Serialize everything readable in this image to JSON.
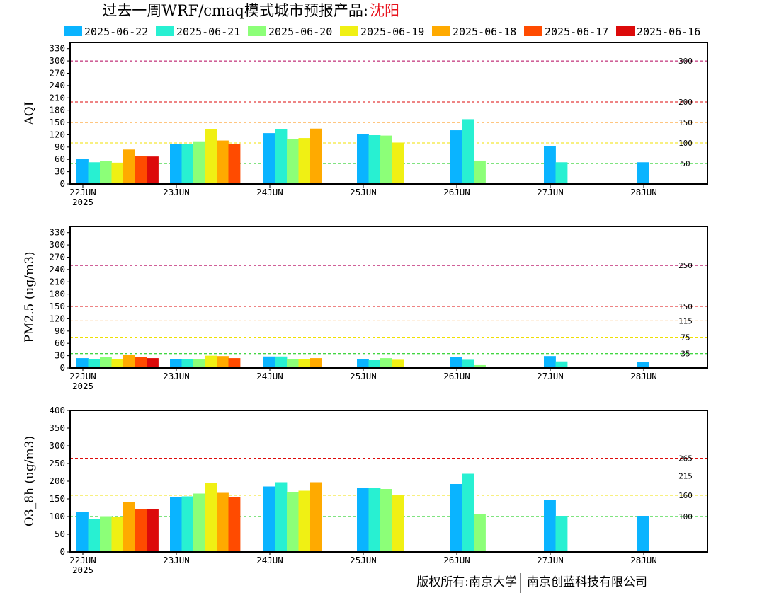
{
  "title": {
    "main": "过去一周WRF/cmaq模式城市预报产品:",
    "city": "沈阳",
    "city_color": "#e8141e"
  },
  "legend": [
    {
      "label": "2025-06-22",
      "color": "#0ab4ff"
    },
    {
      "label": "2025-06-21",
      "color": "#28f0d2"
    },
    {
      "label": "2025-06-20",
      "color": "#8cff78"
    },
    {
      "label": "2025-06-19",
      "color": "#f0f014"
    },
    {
      "label": "2025-06-18",
      "color": "#ffaa00"
    },
    {
      "label": "2025-06-17",
      "color": "#ff4b00"
    },
    {
      "label": "2025-06-16",
      "color": "#dc0a0a"
    }
  ],
  "x_ticks": [
    "22JUN",
    "23JUN",
    "24JUN",
    "25JUN",
    "26JUN",
    "27JUN",
    "28JUN"
  ],
  "x_year": "2025",
  "copyright": {
    "left": "版权所有:南京大学",
    "right": "南京创蓝科技有限公司"
  },
  "chart_data": [
    {
      "type": "bar",
      "ylabel": "AQI",
      "ylim": [
        0,
        345
      ],
      "yticks": [
        0,
        30,
        60,
        90,
        120,
        150,
        180,
        210,
        240,
        270,
        300,
        330
      ],
      "reference_lines": [
        {
          "value": 300,
          "label": "300",
          "color": "#b4005a"
        },
        {
          "value": 200,
          "label": "200",
          "color": "#dc0a0a"
        },
        {
          "value": 150,
          "label": "150",
          "color": "#ff8c00"
        },
        {
          "value": 100,
          "label": "100",
          "color": "#f0e000"
        },
        {
          "value": 50,
          "label": "50",
          "color": "#00c800"
        }
      ],
      "categories": [
        "22JUN",
        "23JUN",
        "24JUN",
        "25JUN",
        "26JUN",
        "27JUN",
        "28JUN"
      ],
      "series": [
        {
          "name": "2025-06-22",
          "values": [
            62,
            97,
            124,
            122,
            131,
            92,
            53
          ]
        },
        {
          "name": "2025-06-21",
          "values": [
            53,
            97,
            134,
            119,
            158,
            53,
            null
          ]
        },
        {
          "name": "2025-06-20",
          "values": [
            56,
            104,
            109,
            118,
            57,
            null,
            null
          ]
        },
        {
          "name": "2025-06-19",
          "values": [
            52,
            133,
            112,
            101,
            null,
            null,
            null
          ]
        },
        {
          "name": "2025-06-18",
          "values": [
            84,
            106,
            135,
            null,
            null,
            null,
            null
          ]
        },
        {
          "name": "2025-06-17",
          "values": [
            69,
            97,
            null,
            null,
            null,
            null,
            null
          ]
        },
        {
          "name": "2025-06-16",
          "values": [
            67,
            null,
            null,
            null,
            null,
            null,
            null
          ]
        }
      ]
    },
    {
      "type": "bar",
      "ylabel": "PM2.5 (ug/m3)",
      "ylim": [
        0,
        345
      ],
      "yticks": [
        0,
        30,
        60,
        90,
        120,
        150,
        180,
        210,
        240,
        270,
        300,
        330
      ],
      "reference_lines": [
        {
          "value": 250,
          "label": "250",
          "color": "#b4005a"
        },
        {
          "value": 150,
          "label": "150",
          "color": "#dc0a0a"
        },
        {
          "value": 115,
          "label": "115",
          "color": "#ff8c00"
        },
        {
          "value": 75,
          "label": "75",
          "color": "#f0e000"
        },
        {
          "value": 35,
          "label": "35",
          "color": "#00c800"
        }
      ],
      "categories": [
        "22JUN",
        "23JUN",
        "24JUN",
        "25JUN",
        "26JUN",
        "27JUN",
        "28JUN"
      ],
      "series": [
        {
          "name": "2025-06-22",
          "values": [
            24,
            22,
            28,
            22,
            26,
            29,
            14
          ]
        },
        {
          "name": "2025-06-21",
          "values": [
            22,
            21,
            28,
            19,
            20,
            16,
            null
          ]
        },
        {
          "name": "2025-06-20",
          "values": [
            27,
            21,
            22,
            24,
            7,
            null,
            null
          ]
        },
        {
          "name": "2025-06-19",
          "values": [
            22,
            30,
            21,
            20,
            null,
            null,
            null
          ]
        },
        {
          "name": "2025-06-18",
          "values": [
            32,
            29,
            24,
            null,
            null,
            null,
            null
          ]
        },
        {
          "name": "2025-06-17",
          "values": [
            26,
            24,
            null,
            null,
            null,
            null,
            null
          ]
        },
        {
          "name": "2025-06-16",
          "values": [
            24,
            null,
            null,
            null,
            null,
            null,
            null
          ]
        }
      ]
    },
    {
      "type": "bar",
      "ylabel": "O3_8h (ug/m3)",
      "ylim": [
        0,
        400
      ],
      "yticks": [
        0,
        50,
        100,
        150,
        200,
        250,
        300,
        350,
        400
      ],
      "reference_lines": [
        {
          "value": 265,
          "label": "265",
          "color": "#dc0a0a"
        },
        {
          "value": 215,
          "label": "215",
          "color": "#ff8c00"
        },
        {
          "value": 160,
          "label": "160",
          "color": "#f0e000"
        },
        {
          "value": 100,
          "label": "100",
          "color": "#00c800"
        }
      ],
      "categories": [
        "22JUN",
        "23JUN",
        "24JUN",
        "25JUN",
        "26JUN",
        "27JUN",
        "28JUN"
      ],
      "series": [
        {
          "name": "2025-06-22",
          "values": [
            113,
            156,
            185,
            182,
            192,
            148,
            102
          ]
        },
        {
          "name": "2025-06-21",
          "values": [
            92,
            157,
            197,
            180,
            221,
            102,
            null
          ]
        },
        {
          "name": "2025-06-20",
          "values": [
            101,
            165,
            169,
            178,
            108,
            null,
            null
          ]
        },
        {
          "name": "2025-06-19",
          "values": [
            100,
            195,
            173,
            160,
            null,
            null,
            null
          ]
        },
        {
          "name": "2025-06-18",
          "values": [
            141,
            167,
            197,
            null,
            null,
            null,
            null
          ]
        },
        {
          "name": "2025-06-17",
          "values": [
            122,
            155,
            null,
            null,
            null,
            null,
            null
          ]
        },
        {
          "name": "2025-06-16",
          "values": [
            120,
            null,
            null,
            null,
            null,
            null,
            null
          ]
        }
      ]
    }
  ]
}
